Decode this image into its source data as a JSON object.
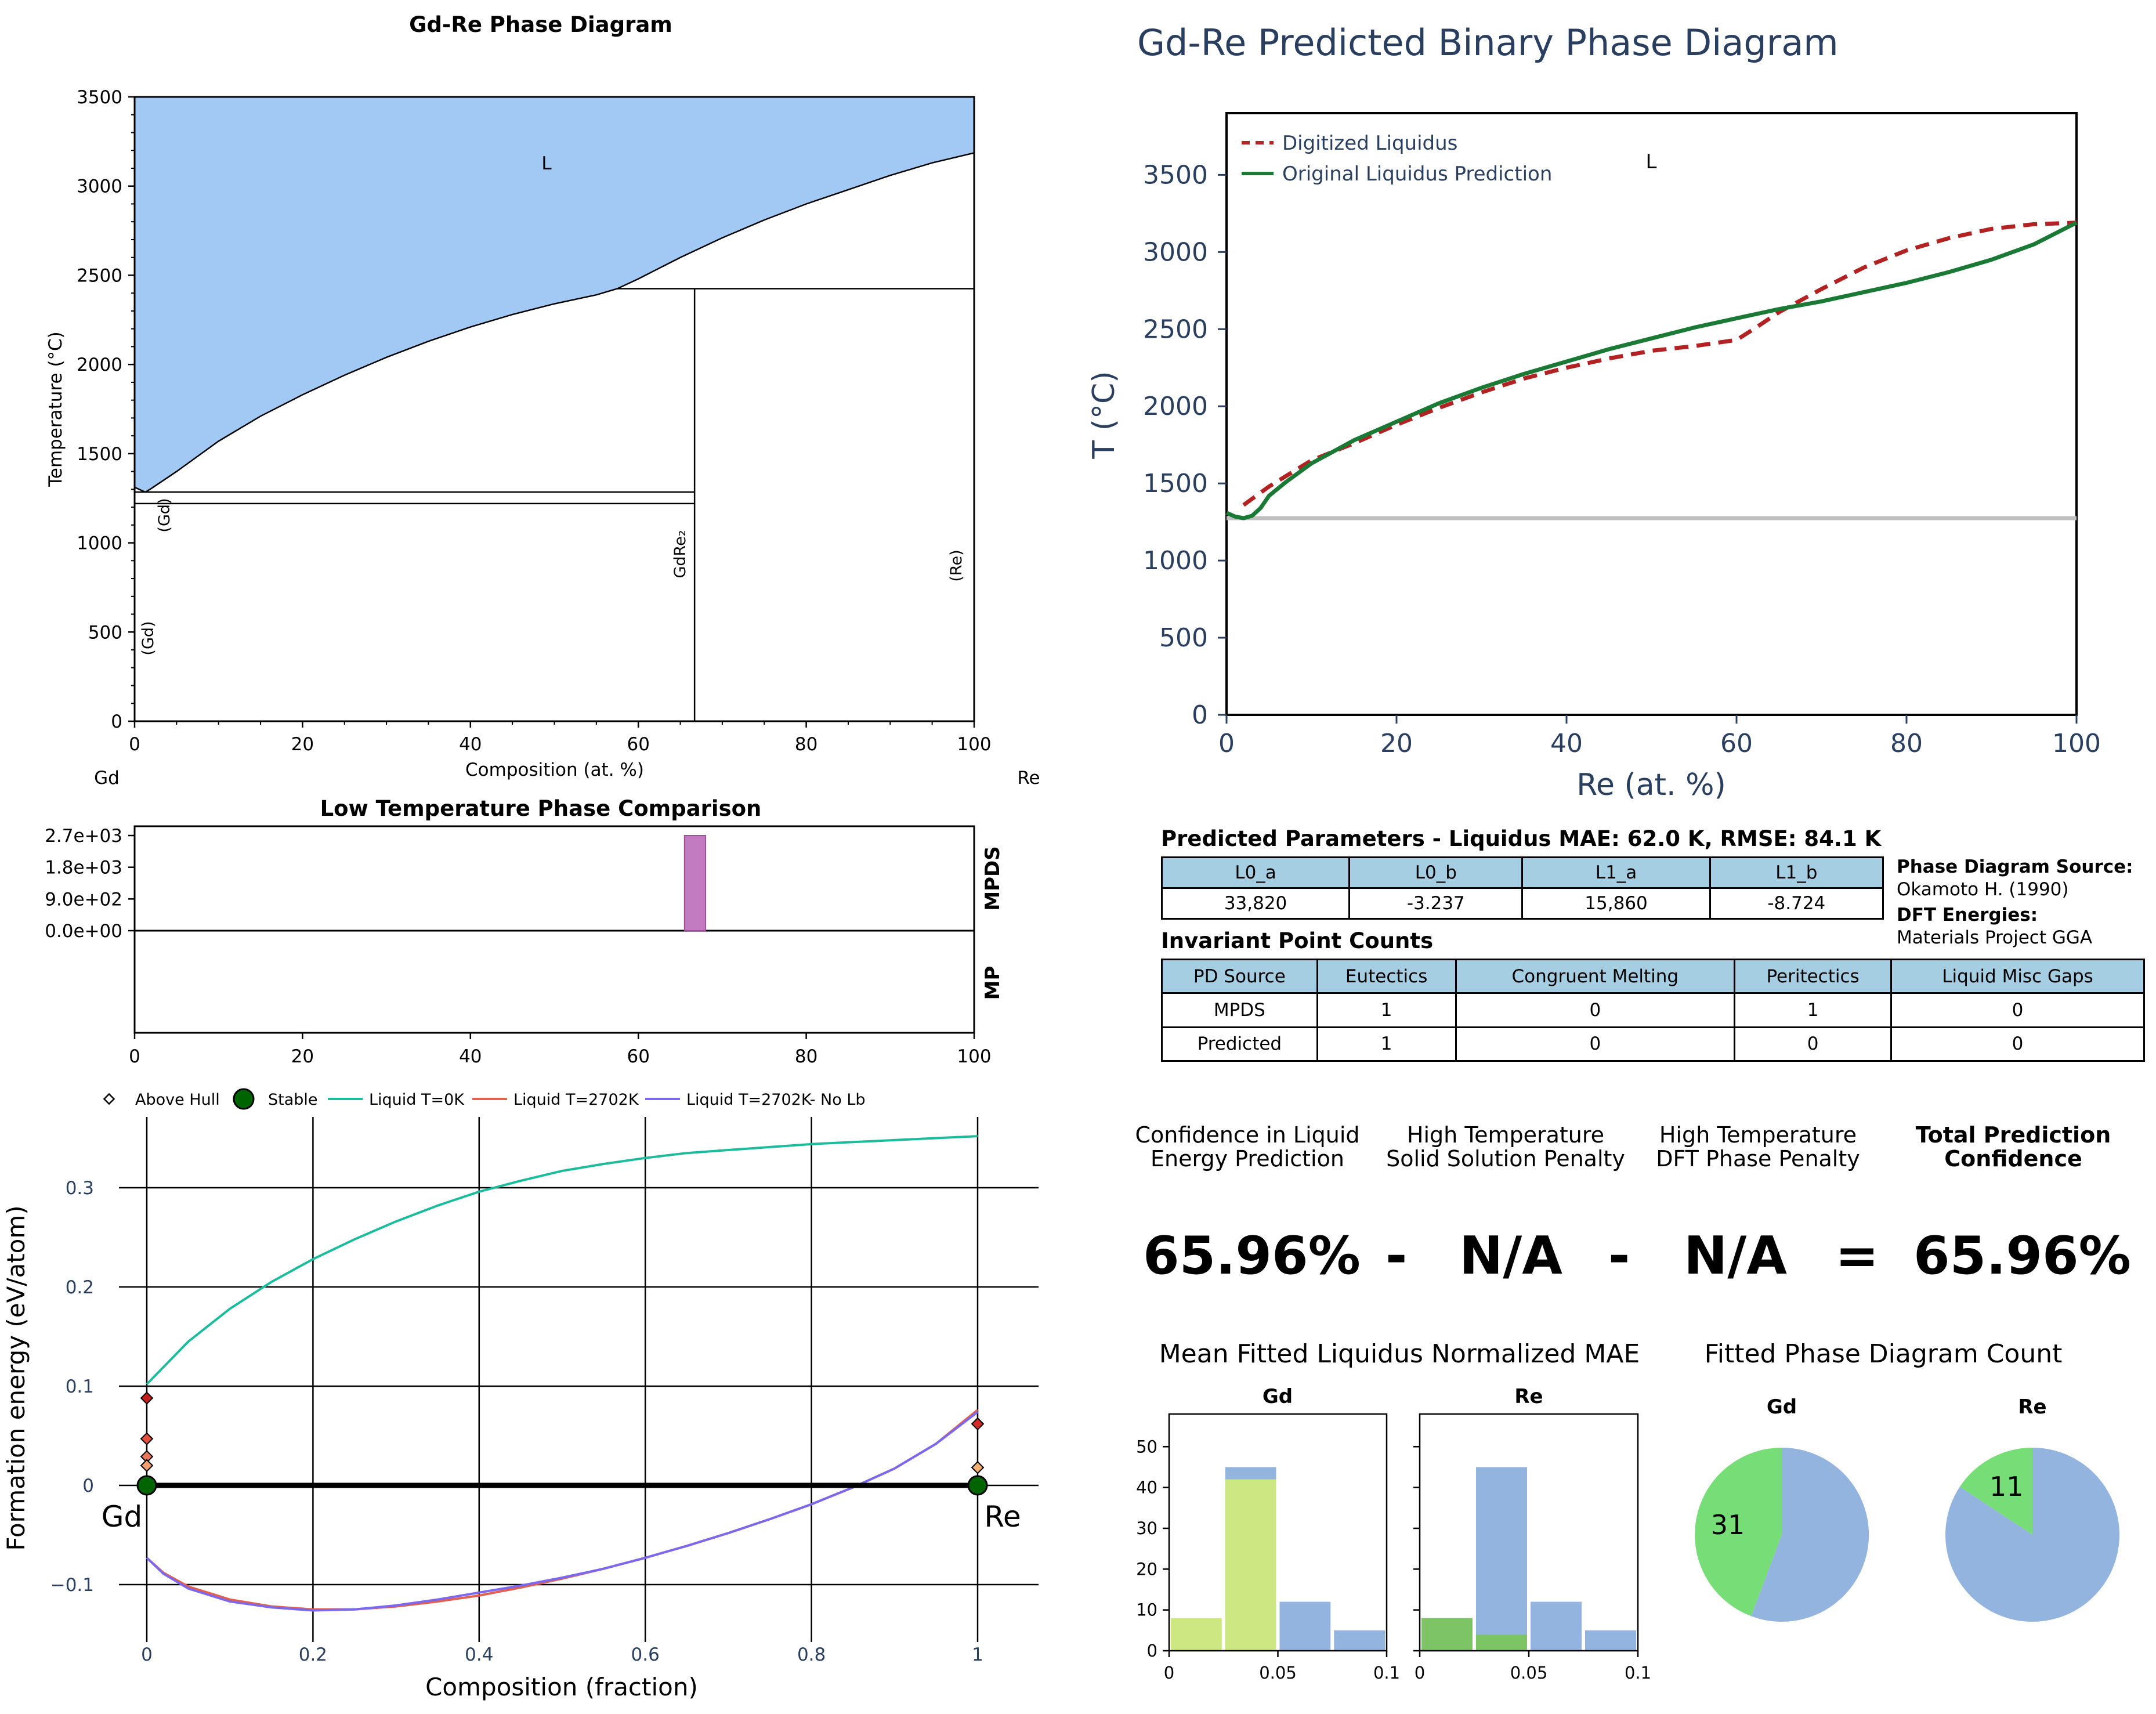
{
  "panel1": {
    "title": "Gd-Re Phase Diagram",
    "xlabel": "Composition (at. %)",
    "ylabel": "Temperature (°C)",
    "left_element": "Gd",
    "right_element": "Re",
    "region_labels": [
      "L",
      "(Gd)",
      "(Gd)",
      "GdRe₂",
      "(Re)"
    ],
    "liquid_color": "#a1c9f4"
  },
  "panel2": {
    "title": "Gd-Re Predicted Binary Phase Diagram",
    "xlabel": "Re (at. %)",
    "ylabel": "T (°C)",
    "legend": [
      "Digitized Liquidus",
      "Original Liquidus Prediction"
    ],
    "region_label": "L"
  },
  "panel3": {
    "title": "Low Temperature Phase Comparison",
    "row_labels": [
      "MPDS",
      "MP"
    ],
    "bar_color": "#c27bc0"
  },
  "panel4": {
    "xlabel": "Composition (fraction)",
    "ylabel": "Formation energy (eV/atom)",
    "legend": [
      "Above Hull",
      "Stable",
      "Liquid T=0K",
      "Liquid T=2702K",
      "Liquid T=2702K- No Lb"
    ],
    "left_element": "Gd",
    "right_element": "Re"
  },
  "params": {
    "title": "Predicted Parameters - Liquidus MAE: 62.0 K, RMSE: 84.1 K",
    "headers": [
      "L0_a",
      "L0_b",
      "L1_a",
      "L1_b"
    ],
    "values": [
      "33,820",
      "-3.237",
      "15,860",
      "-8.724"
    ],
    "source_label": "Phase Diagram Source:",
    "source_value": "Okamoto H. (1990)",
    "dft_label": "DFT Energies:",
    "dft_value": "Materials Project GGA"
  },
  "invariants": {
    "title": "Invariant Point Counts",
    "headers": [
      "PD Source",
      "Eutectics",
      "Congruent Melting",
      "Peritectics",
      "Liquid Misc Gaps"
    ],
    "rows": [
      [
        "MPDS",
        "1",
        "0",
        "1",
        "0"
      ],
      [
        "Predicted",
        "1",
        "0",
        "0",
        "0"
      ]
    ]
  },
  "confidence": {
    "h1a": "Confidence in Liquid",
    "h1b": "Energy Prediction",
    "h2a": "High Temperature",
    "h2b": "Solid Solution Penalty",
    "h3a": "High Temperature",
    "h3b": "DFT Phase Penalty",
    "h4a": "Total Prediction",
    "h4b": "Confidence",
    "v1": "65.96%",
    "op1": "-",
    "v2": "N/A",
    "op2": "-",
    "v3": "N/A",
    "op3": "=",
    "v4": "65.96%"
  },
  "mae_section": {
    "title": "Mean Fitted Liquidus Normalized MAE",
    "panels": [
      "Gd",
      "Re"
    ]
  },
  "count_section": {
    "title": "Fitted Phase Diagram Count",
    "panels": [
      "Gd",
      "Re"
    ]
  },
  "chart_data": [
    {
      "id": "phase-diagram",
      "type": "line",
      "title": "Gd-Re Phase Diagram",
      "xlabel": "Composition (at. %)",
      "ylabel": "Temperature (°C)",
      "xlim": [
        0,
        100
      ],
      "ylim": [
        0,
        3500
      ],
      "xticks": [
        0,
        20,
        40,
        60,
        80,
        100
      ],
      "yticks": [
        0,
        500,
        1000,
        1500,
        2000,
        2500,
        3000,
        3500
      ],
      "liquidus": [
        [
          0,
          1312
        ],
        [
          1,
          1290
        ],
        [
          1.3,
          1285
        ],
        [
          2,
          1305
        ],
        [
          5,
          1400
        ],
        [
          10,
          1570
        ],
        [
          15,
          1710
        ],
        [
          20,
          1830
        ],
        [
          25,
          1940
        ],
        [
          30,
          2040
        ],
        [
          35,
          2130
        ],
        [
          40,
          2210
        ],
        [
          45,
          2280
        ],
        [
          50,
          2340
        ],
        [
          55,
          2390
        ],
        [
          57.5,
          2425
        ],
        [
          60,
          2480
        ],
        [
          65,
          2600
        ],
        [
          70,
          2710
        ],
        [
          75,
          2810
        ],
        [
          80,
          2900
        ],
        [
          85,
          2980
        ],
        [
          90,
          3060
        ],
        [
          95,
          3130
        ],
        [
          100,
          3186
        ]
      ],
      "horizontal_lines": [
        {
          "y": 2425,
          "x": [
            57.5,
            100
          ]
        },
        {
          "y": 1285,
          "x": [
            0,
            66.7
          ]
        },
        {
          "y": 1220,
          "x": [
            0,
            66.7
          ]
        }
      ],
      "vertical_lines": [
        {
          "x": 66.7,
          "y": [
            0,
            2425
          ]
        }
      ]
    },
    {
      "id": "predicted-diagram",
      "type": "line",
      "title": "Gd-Re Predicted Binary Phase Diagram",
      "xlabel": "Re (at. %)",
      "ylabel": "T (°C)",
      "xlim": [
        0,
        100
      ],
      "ylim": [
        0,
        3900
      ],
      "xticks": [
        0,
        20,
        40,
        60,
        80,
        100
      ],
      "yticks": [
        0,
        500,
        1000,
        1500,
        2000,
        2500,
        3000,
        3500
      ],
      "series": [
        {
          "name": "Digitized Liquidus",
          "color": "#b22222",
          "x": [
            2,
            5,
            10,
            15,
            20,
            25,
            30,
            35,
            40,
            45,
            50,
            55,
            60,
            62,
            65,
            70,
            75,
            80,
            85,
            90,
            95,
            100
          ],
          "y": [
            1360,
            1480,
            1650,
            1760,
            1880,
            1990,
            2090,
            2180,
            2250,
            2310,
            2360,
            2390,
            2430,
            2500,
            2610,
            2760,
            2900,
            3010,
            3090,
            3150,
            3180,
            3190
          ]
        },
        {
          "name": "Original Liquidus Prediction",
          "color": "#1a7a35",
          "x": [
            0,
            1,
            2,
            3,
            4,
            5,
            7,
            10,
            15,
            20,
            25,
            30,
            35,
            40,
            45,
            50,
            55,
            60,
            65,
            70,
            75,
            80,
            85,
            90,
            95,
            100
          ],
          "y": [
            1310,
            1285,
            1275,
            1290,
            1340,
            1420,
            1510,
            1630,
            1780,
            1900,
            2020,
            2120,
            2210,
            2290,
            2370,
            2440,
            2510,
            2570,
            2630,
            2680,
            2740,
            2800,
            2870,
            2950,
            3050,
            3190
          ]
        }
      ],
      "hline": {
        "y": 1275,
        "color": "#c0c0c0"
      }
    },
    {
      "id": "low-temp-comparison",
      "type": "bar",
      "title": "Low Temperature Phase Comparison",
      "xlim": [
        0,
        100
      ],
      "xticks": [
        0,
        20,
        40,
        60,
        80,
        100
      ],
      "yticks": [
        "0.0e+00",
        "9.0e+02",
        "1.8e+03",
        "2.7e+03"
      ],
      "ylim": [
        0,
        2700
      ],
      "bars": [
        {
          "row": "MPDS",
          "x": [
            65.5,
            68.0
          ],
          "value": 2700
        }
      ]
    },
    {
      "id": "formation-energy",
      "type": "line",
      "xlabel": "Composition (fraction)",
      "ylabel": "Formation energy (eV/atom)",
      "xlim": [
        -0.02,
        1.02
      ],
      "ylim": [
        -0.135,
        0.375
      ],
      "xticks": [
        0,
        0.2,
        0.4,
        0.6,
        0.8,
        1
      ],
      "xticklabels": [
        "0",
        "0.2",
        "0.4",
        "0.6",
        "0.8",
        "1"
      ],
      "yticks": [
        -0.1,
        0,
        0.1,
        0.2,
        0.3
      ],
      "yticklabels": [
        "−0.1",
        "0",
        "0.1",
        "0.2",
        "0.3"
      ],
      "series": [
        {
          "name": "Liquid T=0K",
          "color": "#1abc9c",
          "x": [
            0,
            0.05,
            0.1,
            0.15,
            0.2,
            0.25,
            0.3,
            0.35,
            0.4,
            0.45,
            0.5,
            0.55,
            0.6,
            0.65,
            0.7,
            0.75,
            0.8,
            0.85,
            0.9,
            0.95,
            1
          ],
          "y": [
            0.102,
            0.145,
            0.178,
            0.205,
            0.228,
            0.248,
            0.266,
            0.282,
            0.296,
            0.307,
            0.317,
            0.324,
            0.33,
            0.335,
            0.338,
            0.341,
            0.344,
            0.346,
            0.348,
            0.35,
            0.352
          ]
        },
        {
          "name": "Liquid T=2702K",
          "color": "#e4604e",
          "x": [
            0,
            0.02,
            0.05,
            0.1,
            0.15,
            0.2,
            0.25,
            0.3,
            0.35,
            0.4,
            0.45,
            0.5,
            0.55,
            0.6,
            0.65,
            0.7,
            0.75,
            0.8,
            0.85,
            0.9,
            0.95,
            1
          ],
          "y": [
            -0.073,
            -0.088,
            -0.102,
            -0.115,
            -0.122,
            -0.125,
            -0.125,
            -0.122,
            -0.117,
            -0.111,
            -0.103,
            -0.094,
            -0.084,
            -0.073,
            -0.061,
            -0.048,
            -0.034,
            -0.019,
            -0.002,
            0.017,
            0.042,
            0.076
          ]
        },
        {
          "name": "Liquid T=2702K- No Lb",
          "color": "#7b68ee",
          "x": [
            0,
            0.02,
            0.05,
            0.1,
            0.15,
            0.2,
            0.25,
            0.3,
            0.35,
            0.4,
            0.45,
            0.5,
            0.55,
            0.6,
            0.65,
            0.7,
            0.75,
            0.8,
            0.85,
            0.9,
            0.95,
            1
          ],
          "y": [
            -0.073,
            -0.089,
            -0.104,
            -0.117,
            -0.123,
            -0.126,
            -0.125,
            -0.121,
            -0.115,
            -0.108,
            -0.101,
            -0.093,
            -0.084,
            -0.073,
            -0.061,
            -0.048,
            -0.034,
            -0.019,
            -0.002,
            0.017,
            0.042,
            0.074
          ]
        },
        {
          "name": "Hull",
          "color": "#000000",
          "x": [
            0,
            1
          ],
          "y": [
            0,
            0
          ]
        }
      ],
      "above_hull": [
        [
          0,
          0.088
        ],
        [
          0,
          0.047
        ],
        [
          0,
          0.029
        ],
        [
          0,
          0.02
        ],
        [
          1,
          0.062
        ],
        [
          1,
          0.018
        ],
        [
          1,
          0.002
        ]
      ],
      "stable": [
        [
          0,
          0
        ],
        [
          1,
          0
        ]
      ]
    },
    {
      "id": "mae-gd",
      "type": "bar",
      "title": "Gd",
      "xlim": [
        0,
        0.1
      ],
      "ylim": [
        0,
        58
      ],
      "xticks": [
        0,
        0.05,
        0.1
      ],
      "xticklabels": [
        "0",
        "0.05",
        "0.1"
      ],
      "yticks": [
        0,
        10,
        20,
        30,
        40,
        50
      ],
      "bins": [
        [
          0,
          0.025
        ],
        [
          0.025,
          0.05
        ],
        [
          0.05,
          0.075
        ],
        [
          0.075,
          0.1
        ]
      ],
      "series": [
        {
          "name": "blue",
          "color": "#92b4de",
          "values": [
            0,
            45,
            12,
            5
          ]
        },
        {
          "name": "green",
          "color": "#cde882",
          "values": [
            8,
            42,
            0,
            0
          ]
        }
      ]
    },
    {
      "id": "mae-re",
      "type": "bar",
      "title": "Re",
      "xlim": [
        0,
        0.1
      ],
      "ylim": [
        0,
        58
      ],
      "xticks": [
        0,
        0.05,
        0.1
      ],
      "xticklabels": [
        "0",
        "0.05",
        "0.1"
      ],
      "yticks": [
        0,
        10,
        20,
        30,
        40,
        50
      ],
      "bins": [
        [
          0,
          0.025
        ],
        [
          0.025,
          0.05
        ],
        [
          0.05,
          0.075
        ],
        [
          0.075,
          0.1
        ]
      ],
      "series": [
        {
          "name": "blue",
          "color": "#92b4de",
          "values": [
            0,
            45,
            12,
            5
          ]
        },
        {
          "name": "green",
          "color": "#7cc466",
          "values": [
            8,
            4,
            0,
            0
          ]
        }
      ]
    },
    {
      "id": "count-gd",
      "type": "pie",
      "title": "Gd",
      "slices": [
        {
          "value": 31,
          "label": "31",
          "color": "#77dd77"
        },
        {
          "value": 39,
          "label": "",
          "color": "#92b4de"
        }
      ]
    },
    {
      "id": "count-re",
      "type": "pie",
      "title": "Re",
      "slices": [
        {
          "value": 11,
          "label": "11",
          "color": "#77dd77"
        },
        {
          "value": 59,
          "label": "",
          "color": "#92b4de"
        }
      ]
    }
  ]
}
